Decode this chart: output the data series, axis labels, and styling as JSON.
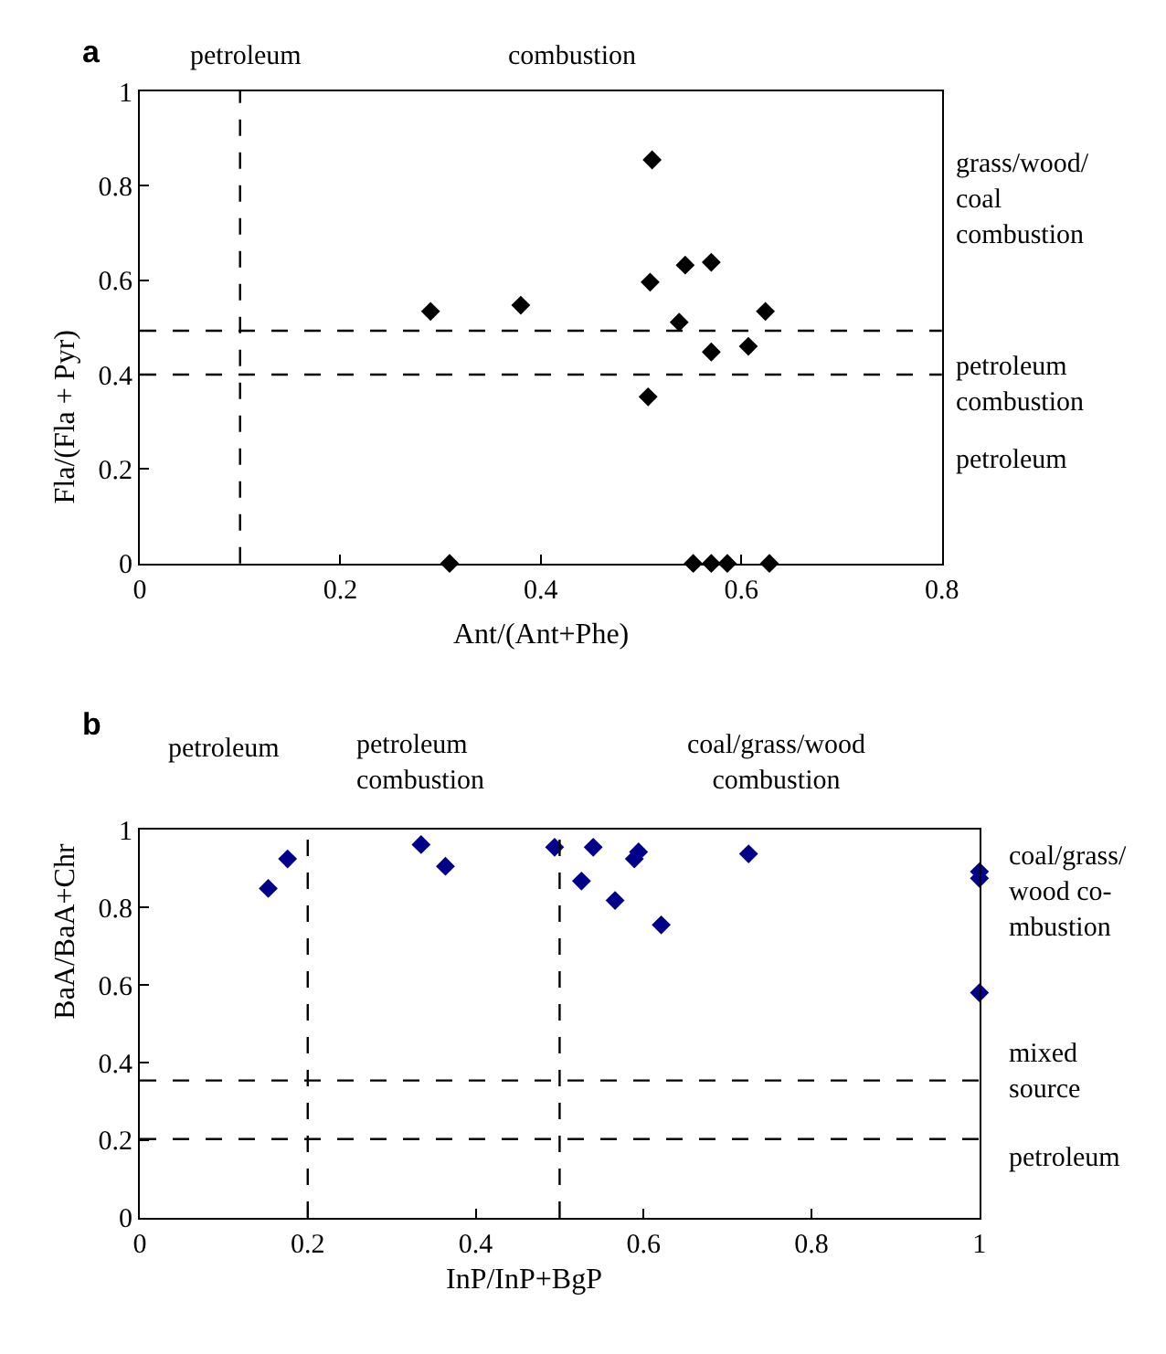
{
  "chart_data": [
    {
      "type": "scatter",
      "title": "a",
      "xlabel": "Ant/(Ant+Phe)",
      "ylabel": "Fla/(Fla + Pyr)",
      "marker": "diamond",
      "xlim": [
        0,
        0.8
      ],
      "xticks": [
        0,
        0.2,
        0.4,
        0.6,
        0.8
      ],
      "ylim": [
        0,
        1
      ],
      "yticks": [
        0,
        0.2,
        0.4,
        0.6,
        0.8,
        1
      ],
      "series": [
        {
          "color": "#000000",
          "x": [
            0.29,
            0.38,
            0.511,
            0.509,
            0.544,
            0.57,
            0.538,
            0.624,
            0.57,
            0.607,
            0.507,
            0.309,
            0.552,
            0.57,
            0.586,
            0.628
          ],
          "values": [
            0.534,
            0.547,
            0.855,
            0.596,
            0.632,
            0.638,
            0.511,
            0.534,
            0.448,
            0.46,
            0.353,
            0,
            0,
            0,
            0,
            0
          ]
        }
      ],
      "ref_lines": [
        {
          "axis": "x",
          "value": 0.1,
          "line_style": "dashed",
          "color": "#000000"
        },
        {
          "axis": "y",
          "value": 0.493,
          "line_style": "dashed",
          "color": "#000000"
        },
        {
          "axis": "y",
          "value": 0.4,
          "line_style": "dashed",
          "color": "#000000"
        }
      ],
      "annotations": [
        "petroleum",
        "combustion",
        "grass/wood/\ncoal\ncombustion",
        "petroleum\ncombustion",
        "petroleum"
      ]
    },
    {
      "type": "scatter",
      "title": "b",
      "xlabel": "InP/InP+BgP",
      "ylabel": "BaA/BaA+Chr",
      "marker": "diamond",
      "xlim": [
        0,
        1
      ],
      "xticks": [
        0,
        0.2,
        0.4,
        0.6,
        0.8,
        1
      ],
      "ylim": [
        0,
        1
      ],
      "yticks": [
        0,
        0.2,
        0.4,
        0.6,
        0.8,
        1
      ],
      "series": [
        {
          "color": "#00008b",
          "x": [
            0.153,
            0.176,
            0.335,
            0.364,
            0.494,
            0.54,
            0.526,
            0.566,
            0.589,
            0.594,
            0.621,
            0.725,
            1,
            1,
            1
          ],
          "values": [
            0.849,
            0.925,
            0.962,
            0.906,
            0.955,
            0.955,
            0.868,
            0.818,
            0.925,
            0.943,
            0.755,
            0.938,
            0.892,
            0.875,
            0.58
          ]
        }
      ],
      "ref_lines": [
        {
          "axis": "x",
          "value": 0.2,
          "line_style": "dashed",
          "color": "#000000"
        },
        {
          "axis": "x",
          "value": 0.5,
          "line_style": "dashed",
          "color": "#000000"
        },
        {
          "axis": "y",
          "value": 0.354,
          "line_style": "dashed",
          "color": "#000000"
        },
        {
          "axis": "y",
          "value": 0.203,
          "line_style": "dashed",
          "color": "#000000"
        }
      ],
      "annotations": [
        "petroleum",
        "petroleum\ncombustion",
        "coal/grass/wood\ncombustion",
        "coal/grass/\nwood co-\nmbustion",
        "mixed\nsource",
        "petroleum"
      ]
    }
  ]
}
